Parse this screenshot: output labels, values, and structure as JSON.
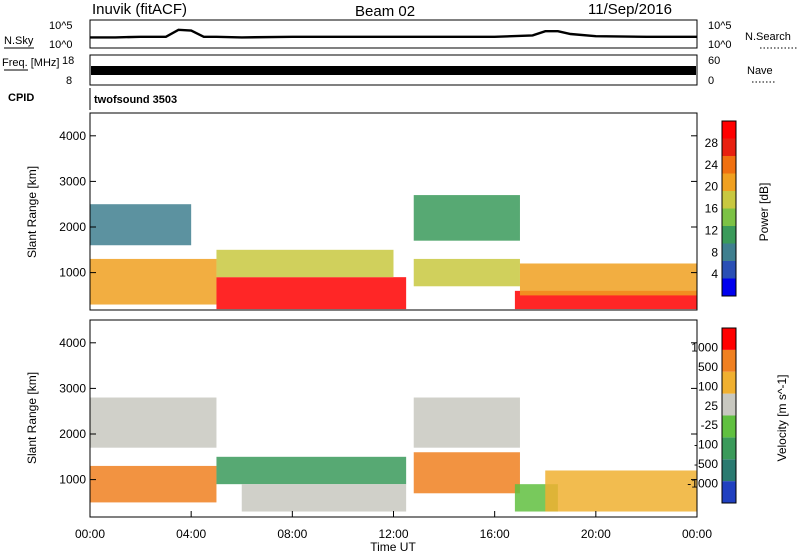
{
  "header": {
    "title": "Inuvik (fitACF)",
    "beam": "Beam 02",
    "date": "11/Sep/2016"
  },
  "chart_data": [
    {
      "type": "line",
      "panel": "noise",
      "ylabel_left": "N.Sky",
      "ylabel_right": "N.Search",
      "left_ticks": [
        "10^5",
        "10^0"
      ],
      "right_ticks": [
        "10^5",
        "10^0"
      ],
      "x_hours": [
        0,
        1,
        2,
        3,
        3.5,
        4,
        4.5,
        5,
        6,
        8,
        10,
        12,
        14,
        16,
        17.5,
        18,
        18.5,
        19,
        20,
        22,
        24
      ],
      "sky_level": [
        0.62,
        0.62,
        0.6,
        0.6,
        0.35,
        0.38,
        0.6,
        0.6,
        0.62,
        0.6,
        0.6,
        0.6,
        0.6,
        0.6,
        0.55,
        0.4,
        0.4,
        0.5,
        0.58,
        0.6,
        0.6
      ]
    },
    {
      "type": "line",
      "panel": "frequency",
      "ylabel_left": "Freq. [MHz]",
      "ylabel_right": "Nave",
      "left_ticks": [
        "18",
        "8"
      ],
      "right_ticks": [
        "60",
        "0"
      ],
      "freq_mhz": 11,
      "nave": 20
    },
    {
      "type": "table",
      "panel": "cpid",
      "label": "CPID",
      "program": "twofsound 3503"
    },
    {
      "type": "heatmap",
      "panel": "power",
      "ylabel": "Slant Range [km]",
      "yticks": [
        1000,
        2000,
        3000,
        4000
      ],
      "ylim": [
        180,
        4500
      ],
      "xlim": [
        0,
        24
      ],
      "colorbar_label": "Power [dB]",
      "colorbar_ticks": [
        "28",
        "24",
        "20",
        "16",
        "12",
        "8",
        "4"
      ],
      "colors": [
        "#0000ee",
        "#2a4fb5",
        "#3f7f8f",
        "#3a9a5a",
        "#7cc245",
        "#c8c840",
        "#f0a020",
        "#f07010",
        "#e82010",
        "#ff0000"
      ],
      "regions": [
        {
          "t0": 0,
          "t1": 5,
          "r0": 300,
          "r1": 1300,
          "level": 6
        },
        {
          "t0": 0,
          "t1": 4,
          "r0": 1600,
          "r1": 2500,
          "level": 2
        },
        {
          "t0": 5,
          "t1": 12.5,
          "r0": 200,
          "r1": 900,
          "level": 9
        },
        {
          "t0": 5,
          "t1": 12,
          "r0": 900,
          "r1": 1500,
          "level": 5
        },
        {
          "t0": 12.8,
          "t1": 17,
          "r0": 1700,
          "r1": 2700,
          "level": 3
        },
        {
          "t0": 12.8,
          "t1": 17,
          "r0": 700,
          "r1": 1300,
          "level": 5
        },
        {
          "t0": 16.8,
          "t1": 24,
          "r0": 200,
          "r1": 600,
          "level": 9
        },
        {
          "t0": 17,
          "t1": 24,
          "r0": 500,
          "r1": 1200,
          "level": 6
        }
      ]
    },
    {
      "type": "heatmap",
      "panel": "velocity",
      "ylabel": "Slant Range [km]",
      "yticks": [
        1000,
        2000,
        3000,
        4000
      ],
      "ylim": [
        180,
        4500
      ],
      "xlim": [
        0,
        24
      ],
      "xticks": [
        "00:00",
        "04:00",
        "08:00",
        "12:00",
        "16:00",
        "20:00",
        "00:00"
      ],
      "xlabel": "Time UT",
      "colorbar_label": "Velocity [m s^-1]",
      "colorbar_ticks": [
        "1000",
        "500",
        "100",
        "25",
        "-25",
        "-100",
        "-500",
        "-1000"
      ],
      "colors": [
        "#2040c0",
        "#2a7a70",
        "#3a9a5a",
        "#60c040",
        "#c8c8c0",
        "#f0b030",
        "#f08020",
        "#ff0000"
      ],
      "regions": [
        {
          "t0": 0,
          "t1": 5,
          "r0": 500,
          "r1": 1300,
          "level": 6
        },
        {
          "t0": 0,
          "t1": 5,
          "r0": 1700,
          "r1": 2800,
          "level": 4
        },
        {
          "t0": 5,
          "t1": 12.5,
          "r0": 900,
          "r1": 1500,
          "level": 2
        },
        {
          "t0": 6,
          "t1": 12.5,
          "r0": 300,
          "r1": 900,
          "level": 4
        },
        {
          "t0": 12.8,
          "t1": 17,
          "r0": 1700,
          "r1": 2800,
          "level": 4
        },
        {
          "t0": 12.8,
          "t1": 17,
          "r0": 700,
          "r1": 1600,
          "level": 6
        },
        {
          "t0": 16.8,
          "t1": 18.5,
          "r0": 300,
          "r1": 900,
          "level": 3
        },
        {
          "t0": 18,
          "t1": 24,
          "r0": 300,
          "r1": 1200,
          "level": 5
        }
      ]
    }
  ]
}
